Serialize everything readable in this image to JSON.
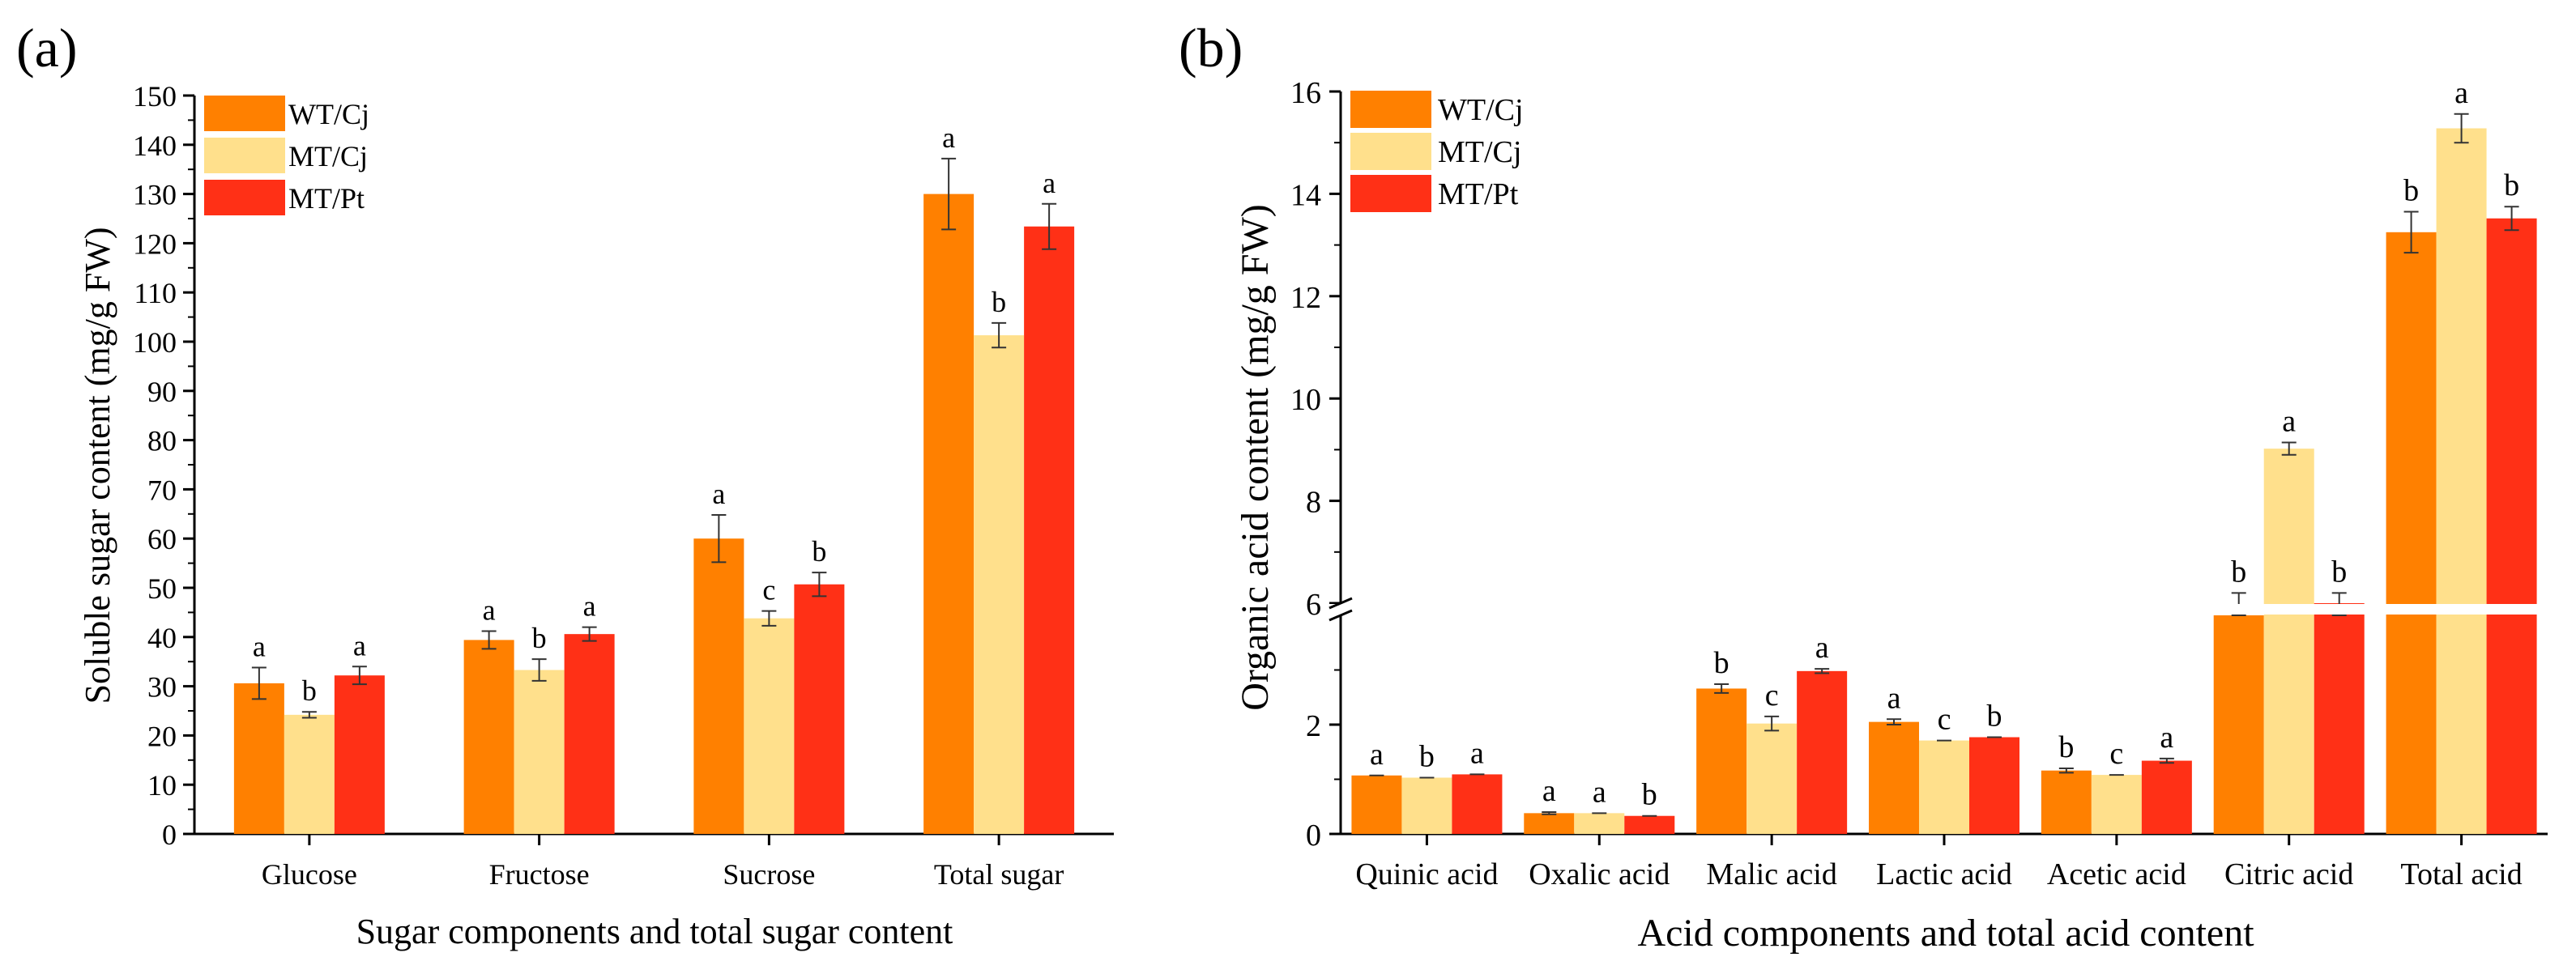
{
  "chart_data": [
    {
      "panel_label": "(a)",
      "type": "bar",
      "xlabel": "Sugar components and total sugar content",
      "ylabel": "Soluble sugar content (mg/g FW)",
      "ylim": [
        0,
        150
      ],
      "yticks": [
        "0",
        "10",
        "20",
        "30",
        "40",
        "50",
        "60",
        "70",
        "80",
        "90",
        "100",
        "110",
        "120",
        "130",
        "140",
        "150"
      ],
      "categories": [
        "Glucose",
        "Fructose",
        "Sucrose",
        "Total sugar"
      ],
      "legend_position": "top-left",
      "series": [
        {
          "name": "WT/Cj",
          "color": "#FF8000",
          "values": [
            30.6,
            39.4,
            60.0,
            130.0
          ],
          "errors": [
            3.2,
            1.8,
            4.8,
            7.2
          ],
          "letters": [
            "a",
            "a",
            "a",
            "a"
          ]
        },
        {
          "name": "MT/Cj",
          "color": "#FFE08C",
          "values": [
            24.2,
            33.3,
            43.8,
            101.3
          ],
          "errors": [
            0.6,
            2.2,
            1.5,
            2.5
          ],
          "letters": [
            "b",
            "b",
            "c",
            "b"
          ]
        },
        {
          "name": "MT/Pt",
          "color": "#FF3016",
          "values": [
            32.2,
            40.6,
            50.7,
            123.4
          ],
          "errors": [
            1.8,
            1.4,
            2.4,
            4.6
          ],
          "letters": [
            "a",
            "a",
            "b",
            "a"
          ]
        }
      ]
    },
    {
      "panel_label": "(b)",
      "type": "bar",
      "xlabel": "Acid components and total acid content",
      "ylabel": "Organic acid content (mg/g FW)",
      "ylim": [
        0,
        16
      ],
      "axis_break": [
        4,
        6
      ],
      "yticks": [
        "0",
        "2",
        "6",
        "8",
        "10",
        "12",
        "14",
        "16"
      ],
      "categories": [
        "Quinic acid",
        "Oxalic acid",
        "Malic acid",
        "Lactic acid",
        "Acetic acid",
        "Citric acid",
        "Total acid"
      ],
      "legend_position": "top-left",
      "series": [
        {
          "name": "WT/Cj",
          "color": "#FF8000",
          "values": [
            1.07,
            0.38,
            2.66,
            2.05,
            1.16,
            5.9,
            13.25
          ],
          "errors": [
            0.0,
            0.02,
            0.08,
            0.05,
            0.04,
            0.3,
            0.4
          ],
          "letters": [
            "a",
            "a",
            "b",
            "a",
            "b",
            "b",
            "b"
          ]
        },
        {
          "name": "MT/Cj",
          "color": "#FFE08C",
          "values": [
            1.03,
            0.38,
            2.02,
            1.71,
            1.08,
            9.02,
            15.28
          ],
          "errors": [
            0.0,
            0.0,
            0.13,
            0.0,
            0.0,
            0.12,
            0.28
          ],
          "letters": [
            "b",
            "a",
            "c",
            "c",
            "c",
            "a",
            "a"
          ]
        },
        {
          "name": "MT/Pt",
          "color": "#FF3016",
          "values": [
            1.09,
            0.33,
            2.98,
            1.77,
            1.34,
            6.0,
            13.52
          ],
          "errors": [
            0.0,
            0.0,
            0.04,
            0.0,
            0.04,
            0.2,
            0.23
          ],
          "letters": [
            "a",
            "b",
            "a",
            "b",
            "a",
            "b",
            "b"
          ]
        }
      ]
    }
  ]
}
